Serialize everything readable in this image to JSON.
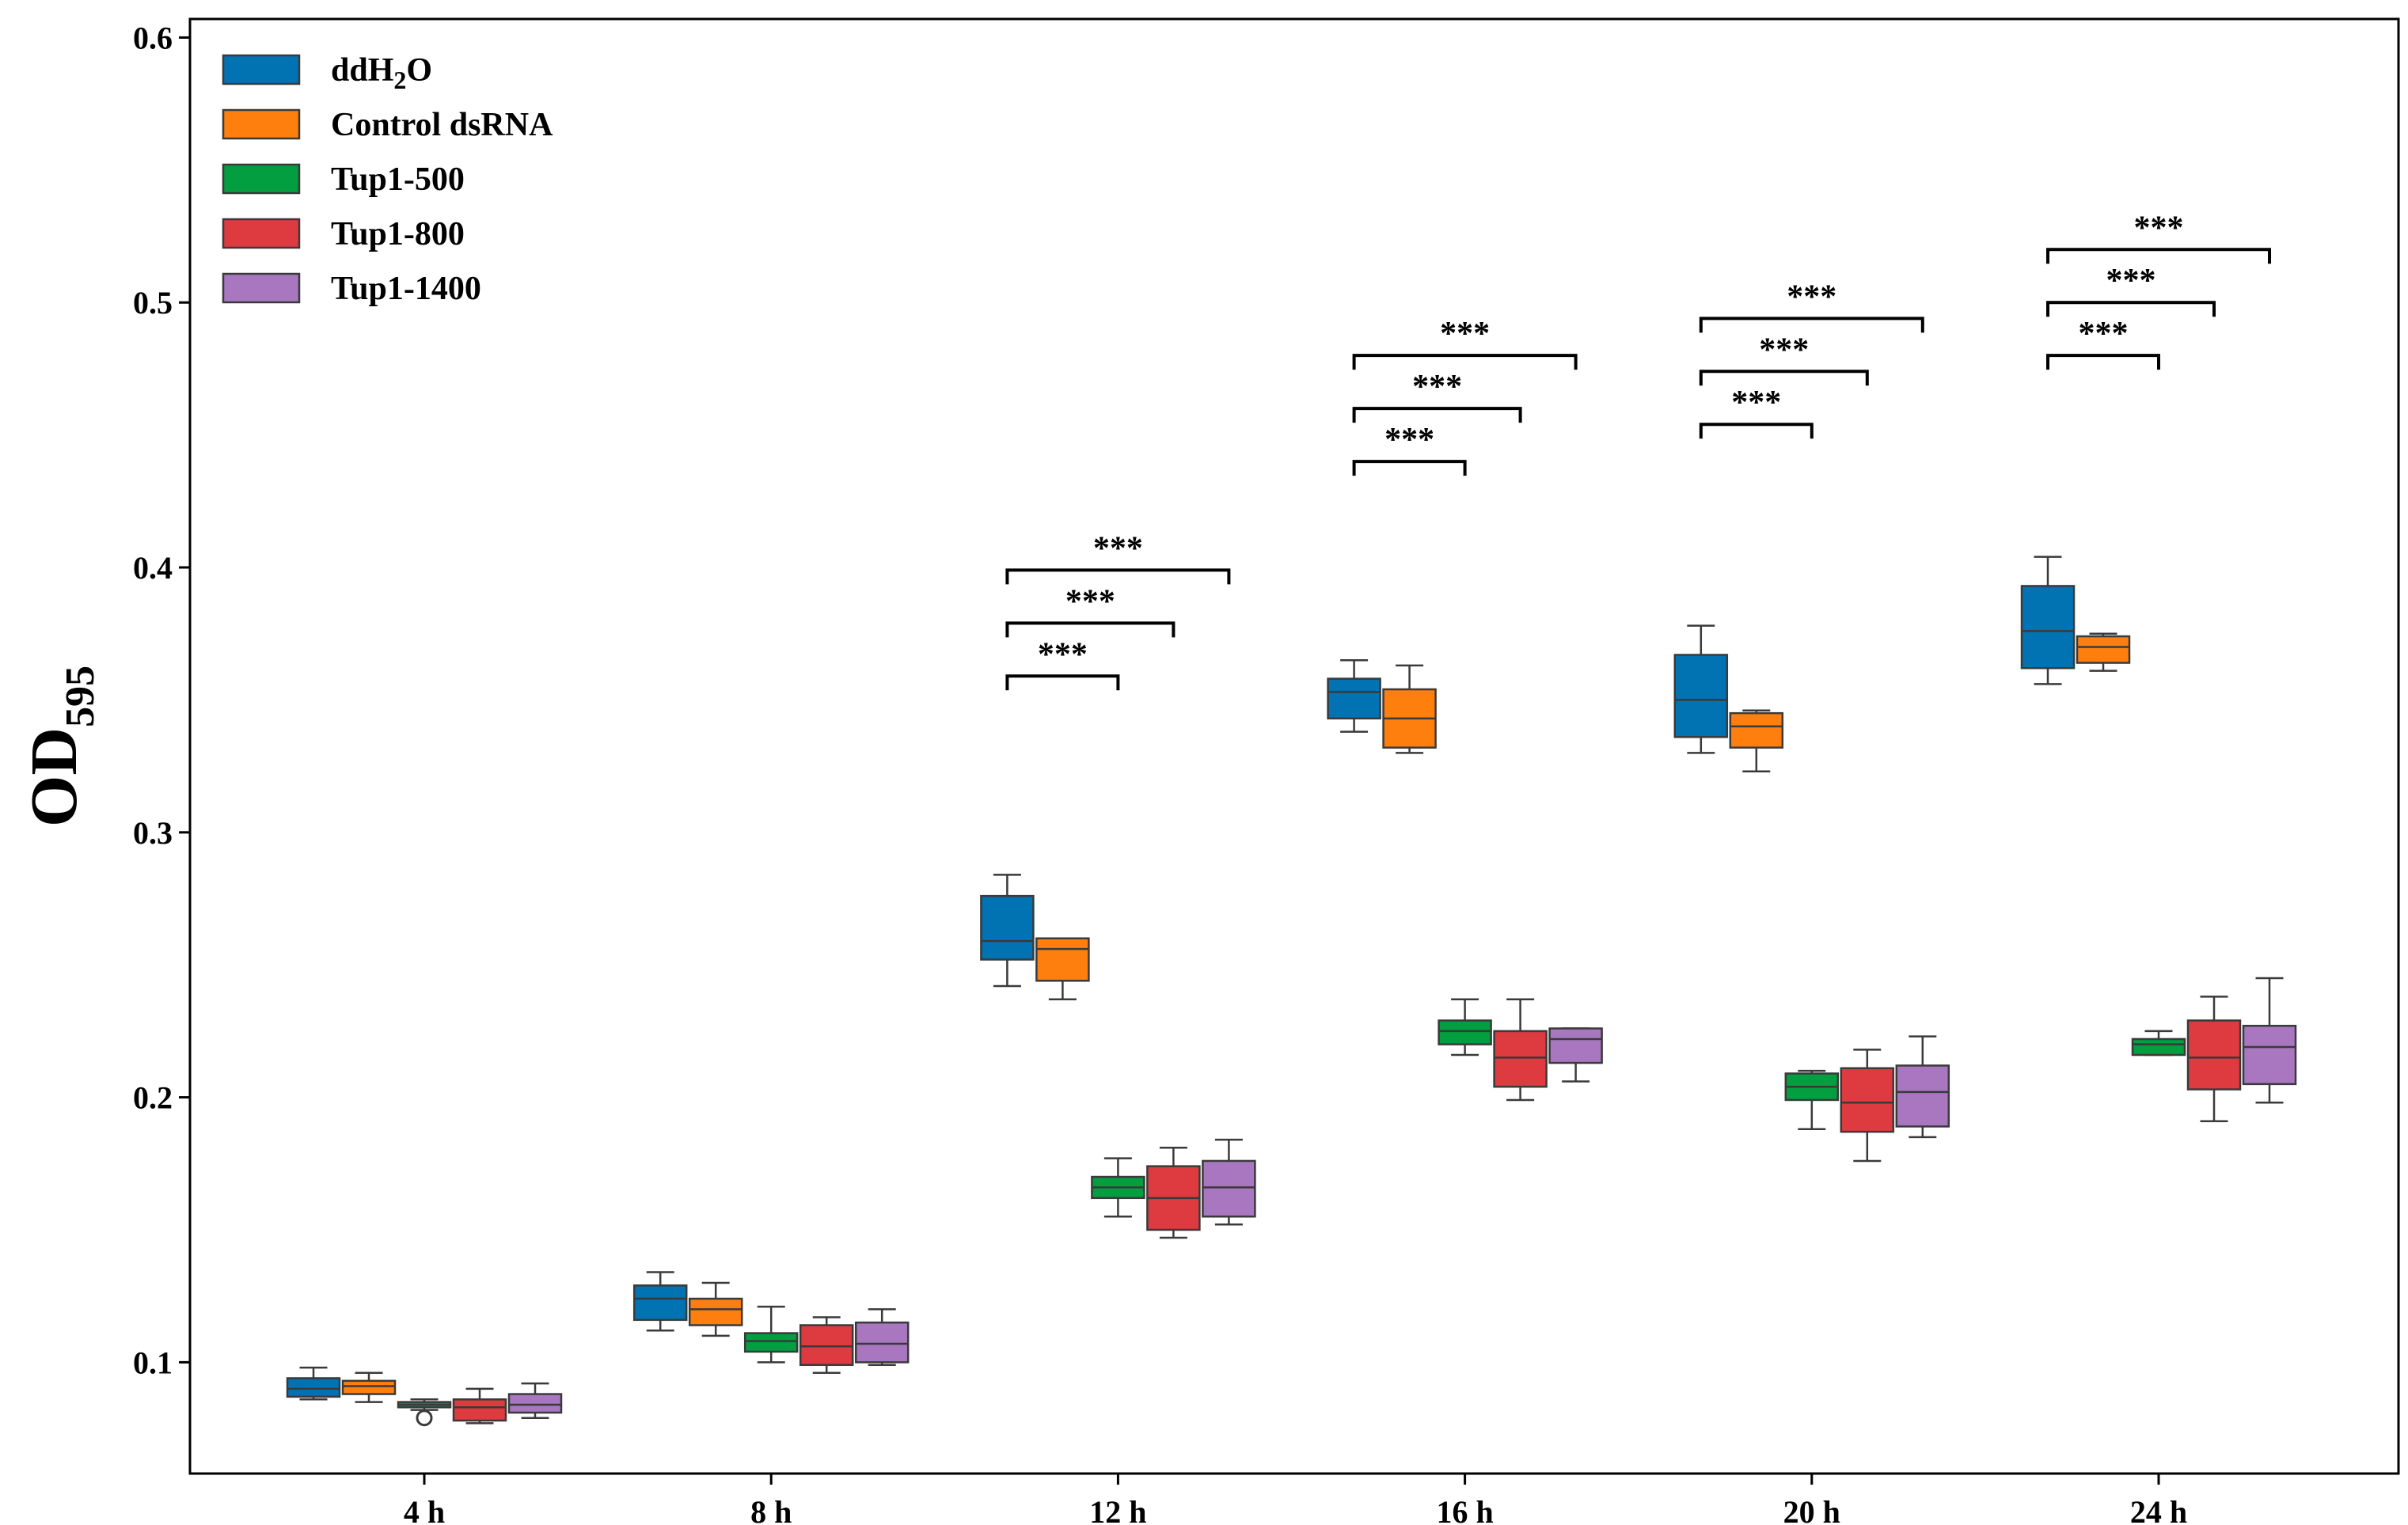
{
  "chart_data": {
    "type": "box",
    "ylabel": "OD",
    "ylabel_sub": "595",
    "xlabel": "",
    "ylim": [
      0.058,
      0.607
    ],
    "y_ticks": [
      "0.1",
      "0.2",
      "0.3",
      "0.4",
      "0.5",
      "0.6"
    ],
    "grid": false,
    "legend_position": "top-left",
    "categories": [
      "4 h",
      "8 h",
      "12 h",
      "16 h",
      "20 h",
      "24 h"
    ],
    "series": [
      {
        "name": "ddH2O",
        "legend_main": "ddH",
        "legend_sub": "2",
        "legend_tail": "O",
        "color": "#0173b2",
        "boxes": [
          {
            "whislo": 0.086,
            "q1": 0.087,
            "med": 0.09,
            "q3": 0.094,
            "whishi": 0.098
          },
          {
            "whislo": 0.112,
            "q1": 0.116,
            "med": 0.124,
            "q3": 0.129,
            "whishi": 0.134
          },
          {
            "whislo": 0.242,
            "q1": 0.252,
            "med": 0.259,
            "q3": 0.276,
            "whishi": 0.284
          },
          {
            "whislo": 0.338,
            "q1": 0.343,
            "med": 0.353,
            "q3": 0.358,
            "whishi": 0.365
          },
          {
            "whislo": 0.33,
            "q1": 0.336,
            "med": 0.35,
            "q3": 0.367,
            "whishi": 0.378
          },
          {
            "whislo": 0.356,
            "q1": 0.362,
            "med": 0.376,
            "q3": 0.393,
            "whishi": 0.404
          }
        ]
      },
      {
        "name": "Control dsRNA",
        "color": "#ff7f0e",
        "boxes": [
          {
            "whislo": 0.085,
            "q1": 0.088,
            "med": 0.091,
            "q3": 0.093,
            "whishi": 0.096
          },
          {
            "whislo": 0.11,
            "q1": 0.114,
            "med": 0.12,
            "q3": 0.124,
            "whishi": 0.13
          },
          {
            "whislo": 0.237,
            "q1": 0.244,
            "med": 0.256,
            "q3": 0.26,
            "whishi": 0.26
          },
          {
            "whislo": 0.33,
            "q1": 0.332,
            "med": 0.343,
            "q3": 0.354,
            "whishi": 0.363
          },
          {
            "whislo": 0.323,
            "q1": 0.332,
            "med": 0.34,
            "q3": 0.345,
            "whishi": 0.346
          },
          {
            "whislo": 0.361,
            "q1": 0.364,
            "med": 0.37,
            "q3": 0.374,
            "whishi": 0.375
          }
        ]
      },
      {
        "name": "Tup1-500",
        "color": "#029e3f",
        "boxes": [
          {
            "whislo": 0.082,
            "q1": 0.083,
            "med": 0.084,
            "q3": 0.085,
            "whishi": 0.086
          },
          {
            "whislo": 0.1,
            "q1": 0.104,
            "med": 0.108,
            "q3": 0.111,
            "whishi": 0.121
          },
          {
            "whislo": 0.155,
            "q1": 0.162,
            "med": 0.166,
            "q3": 0.17,
            "whishi": 0.177
          },
          {
            "whislo": 0.216,
            "q1": 0.22,
            "med": 0.225,
            "q3": 0.229,
            "whishi": 0.237
          },
          {
            "whislo": 0.188,
            "q1": 0.199,
            "med": 0.204,
            "q3": 0.209,
            "whishi": 0.21
          },
          {
            "whislo": 0.216,
            "q1": 0.216,
            "med": 0.22,
            "q3": 0.222,
            "whishi": 0.225
          }
        ]
      },
      {
        "name": "Tup1-800",
        "color": "#de3b41",
        "boxes": [
          {
            "whislo": 0.077,
            "q1": 0.078,
            "med": 0.083,
            "q3": 0.086,
            "whishi": 0.09
          },
          {
            "whislo": 0.096,
            "q1": 0.099,
            "med": 0.106,
            "q3": 0.114,
            "whishi": 0.117
          },
          {
            "whislo": 0.147,
            "q1": 0.15,
            "med": 0.162,
            "q3": 0.174,
            "whishi": 0.181
          },
          {
            "whislo": 0.199,
            "q1": 0.204,
            "med": 0.215,
            "q3": 0.225,
            "whishi": 0.237
          },
          {
            "whislo": 0.176,
            "q1": 0.187,
            "med": 0.198,
            "q3": 0.211,
            "whishi": 0.218
          },
          {
            "whislo": 0.191,
            "q1": 0.203,
            "med": 0.215,
            "q3": 0.229,
            "whishi": 0.238
          }
        ]
      },
      {
        "name": "Tup1-1400",
        "color": "#a877c0",
        "boxes": [
          {
            "whislo": 0.079,
            "q1": 0.081,
            "med": 0.084,
            "q3": 0.088,
            "whishi": 0.092
          },
          {
            "whislo": 0.099,
            "q1": 0.1,
            "med": 0.107,
            "q3": 0.115,
            "whishi": 0.12
          },
          {
            "whislo": 0.152,
            "q1": 0.155,
            "med": 0.166,
            "q3": 0.176,
            "whishi": 0.184
          },
          {
            "whislo": 0.206,
            "q1": 0.213,
            "med": 0.222,
            "q3": 0.226,
            "whishi": 0.226
          },
          {
            "whislo": 0.185,
            "q1": 0.189,
            "med": 0.202,
            "q3": 0.212,
            "whishi": 0.223
          },
          {
            "whislo": 0.198,
            "q1": 0.205,
            "med": 0.219,
            "q3": 0.227,
            "whishi": 0.245
          }
        ]
      }
    ],
    "outliers": [
      {
        "category_index": 0,
        "series_index": 2,
        "value": 0.079
      }
    ],
    "significance": [
      {
        "category_index": 2,
        "from": 0,
        "to": 2,
        "y": 0.359,
        "label": "***"
      },
      {
        "category_index": 2,
        "from": 0,
        "to": 3,
        "y": 0.379,
        "label": "***"
      },
      {
        "category_index": 2,
        "from": 0,
        "to": 4,
        "y": 0.399,
        "label": "***"
      },
      {
        "category_index": 3,
        "from": 0,
        "to": 2,
        "y": 0.44,
        "label": "***"
      },
      {
        "category_index": 3,
        "from": 0,
        "to": 3,
        "y": 0.46,
        "label": "***"
      },
      {
        "category_index": 3,
        "from": 0,
        "to": 4,
        "y": 0.48,
        "label": "***"
      },
      {
        "category_index": 4,
        "from": 0,
        "to": 2,
        "y": 0.454,
        "label": "***"
      },
      {
        "category_index": 4,
        "from": 0,
        "to": 3,
        "y": 0.474,
        "label": "***"
      },
      {
        "category_index": 4,
        "from": 0,
        "to": 4,
        "y": 0.494,
        "label": "***"
      },
      {
        "category_index": 5,
        "from": 0,
        "to": 2,
        "y": 0.48,
        "label": "***"
      },
      {
        "category_index": 5,
        "from": 0,
        "to": 3,
        "y": 0.5,
        "label": "***"
      },
      {
        "category_index": 5,
        "from": 0,
        "to": 4,
        "y": 0.52,
        "label": "***"
      }
    ]
  }
}
